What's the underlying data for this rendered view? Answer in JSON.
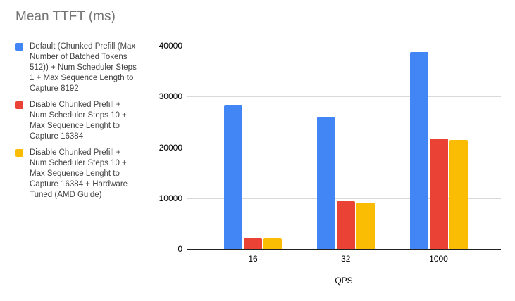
{
  "chart_data": {
    "type": "bar",
    "title": "Mean TTFT (ms)",
    "xlabel": "QPS",
    "ylabel": "",
    "categories": [
      "16",
      "32",
      "1000"
    ],
    "series": [
      {
        "name": "Default (Chunked Prefill (Max\nNumber of Batched Tokens\n512)) + Num Scheduler Steps\n1 + Max Sequence Length to\nCapture 8192",
        "color": "#4285F4",
        "values": [
          28300,
          26000,
          38800
        ]
      },
      {
        "name": "Disable Chunked Prefill +\nNum Scheduler Steps 10 +\nMax Sequence Lenght to\nCapture 16384",
        "color": "#EA4335",
        "values": [
          2100,
          9400,
          21800
        ]
      },
      {
        "name": "Disable Chunked Prefill +\nNum Scheduler Steps 10 +\nMax Sequence Lenght to\nCapture 16384 + Hardware\nTuned (AMD Guide)",
        "color": "#FBBC04",
        "values": [
          2050,
          9200,
          21400
        ]
      }
    ],
    "ylim": [
      0,
      40000
    ],
    "yticks": [
      0,
      10000,
      20000,
      30000,
      40000
    ],
    "grid": true,
    "legend_position": "left"
  },
  "colors": {
    "title_text": "#757575",
    "legend_text": "#424242",
    "axis_line": "#212121",
    "gridline": "#d9d9d9",
    "tick_text": "#000000",
    "background": "#ffffff"
  }
}
